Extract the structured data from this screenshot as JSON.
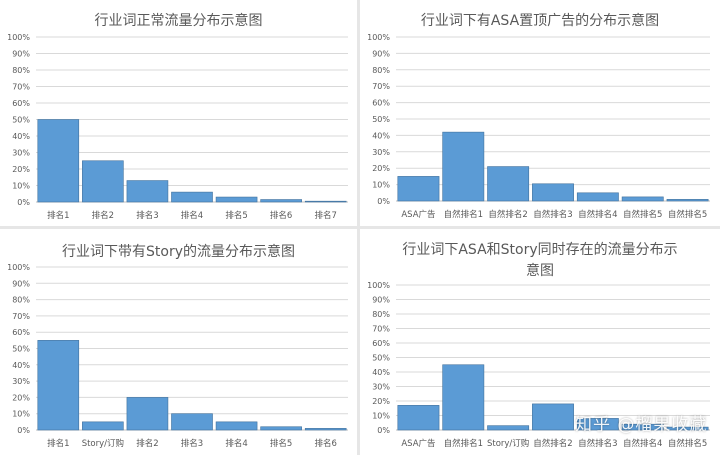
{
  "watermark": "知乎 @榴果收藏",
  "chart_data": [
    {
      "type": "bar",
      "title": "行业词正常流量分布示意图",
      "categories": [
        "排名1",
        "排名2",
        "排名3",
        "排名4",
        "排名5",
        "排名6",
        "排名7"
      ],
      "values": [
        50,
        25,
        13,
        6,
        3,
        1.5,
        0.5
      ],
      "ylim": [
        0,
        100
      ],
      "yticks": [
        "0%",
        "10%",
        "20%",
        "30%",
        "40%",
        "50%",
        "60%",
        "70%",
        "80%",
        "90%",
        "100%"
      ],
      "grid": true,
      "legend": "none"
    },
    {
      "type": "bar",
      "title": "行业词下有ASA置顶广告的分布示意图",
      "categories": [
        "ASA广告",
        "自然排名1",
        "自然排名2",
        "自然排名3",
        "自然排名4",
        "自然排名5",
        "自然排名5"
      ],
      "values": [
        15,
        42,
        21,
        10.5,
        5,
        2.5,
        1
      ],
      "ylim": [
        0,
        100
      ],
      "yticks": [
        "0%",
        "10%",
        "20%",
        "30%",
        "40%",
        "50%",
        "60%",
        "70%",
        "80%",
        "90%",
        "100%"
      ],
      "grid": true,
      "legend": "none"
    },
    {
      "type": "bar",
      "title": "行业词下带有Story的流量分布示意图",
      "categories": [
        "排名1",
        "Story/订购",
        "排名2",
        "排名3",
        "排名4",
        "排名5",
        "排名6"
      ],
      "values": [
        55,
        5,
        20,
        10,
        5,
        2,
        1
      ],
      "ylim": [
        0,
        100
      ],
      "yticks": [
        "0%",
        "10%",
        "20%",
        "30%",
        "40%",
        "50%",
        "60%",
        "70%",
        "80%",
        "90%",
        "100%"
      ],
      "grid": true,
      "legend": "none"
    },
    {
      "type": "bar",
      "title": "行业词下ASA和Story同时存在的流量分布示意图",
      "title_lines": [
        "行业词下ASA和Story同时存在的流量分布示",
        "意图"
      ],
      "categories": [
        "ASA广告",
        "自然排名1",
        "Story/订购",
        "自然排名2",
        "自然排名3",
        "自然排名4",
        "自然排名5"
      ],
      "values": [
        17,
        45,
        3,
        18,
        8,
        4,
        2
      ],
      "ylim": [
        0,
        100
      ],
      "yticks": [
        "0%",
        "10%",
        "20%",
        "30%",
        "40%",
        "50%",
        "60%",
        "70%",
        "80%",
        "90%",
        "100%"
      ],
      "grid": true,
      "legend": "none"
    }
  ]
}
